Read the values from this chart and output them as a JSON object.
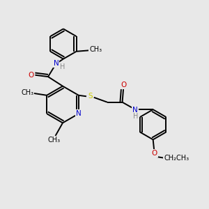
{
  "bg_color": "#e8e8e8",
  "bond_color": "#000000",
  "line_width": 1.4,
  "atom_colors": {
    "N": "#0000cc",
    "O": "#cc0000",
    "S": "#cccc00",
    "C": "#000000",
    "H": "#888888"
  },
  "font_size": 7.5,
  "fig_w": 3.0,
  "fig_h": 3.0,
  "dpi": 100,
  "xlim": [
    0,
    10
  ],
  "ylim": [
    0,
    10
  ]
}
